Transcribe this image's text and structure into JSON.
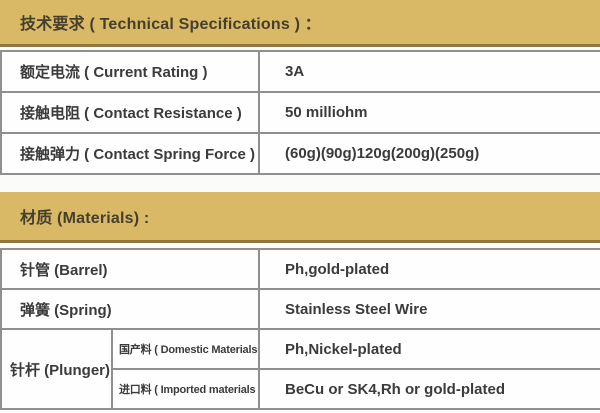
{
  "colors": {
    "section_bar_bg": "#d9b866",
    "section_bar_edge": "#8e7742",
    "table_border": "#8f8f8f",
    "text": "#3b3b3b"
  },
  "technical_specs": {
    "title": "技术要求 ( Technical Specifications ) ：",
    "rows": [
      {
        "label": "额定电流 ( Current Rating )",
        "value": "3A"
      },
      {
        "label": "接触电阻 ( Contact Resistance )",
        "value": "50 milliohm"
      },
      {
        "label": "接触弹力 ( Contact Spring Force )",
        "value": "(60g)(90g)120g(200g)(250g)"
      }
    ]
  },
  "materials": {
    "title": "材质 (Materials) :",
    "rows": [
      {
        "label": "针管 (Barrel)",
        "value": "Ph,gold-plated"
      },
      {
        "label": "弹簧 (Spring)",
        "value": "Stainless Steel Wire"
      }
    ],
    "plunger": {
      "label": "针杆 (Plunger)",
      "sub_rows": [
        {
          "label": "国产料 ( Domestic Materials )",
          "value": "Ph,Nickel-plated"
        },
        {
          "label": "进口料 ( Imported materials )",
          "value": "BeCu or SK4,Rh or gold-plated"
        }
      ]
    }
  }
}
